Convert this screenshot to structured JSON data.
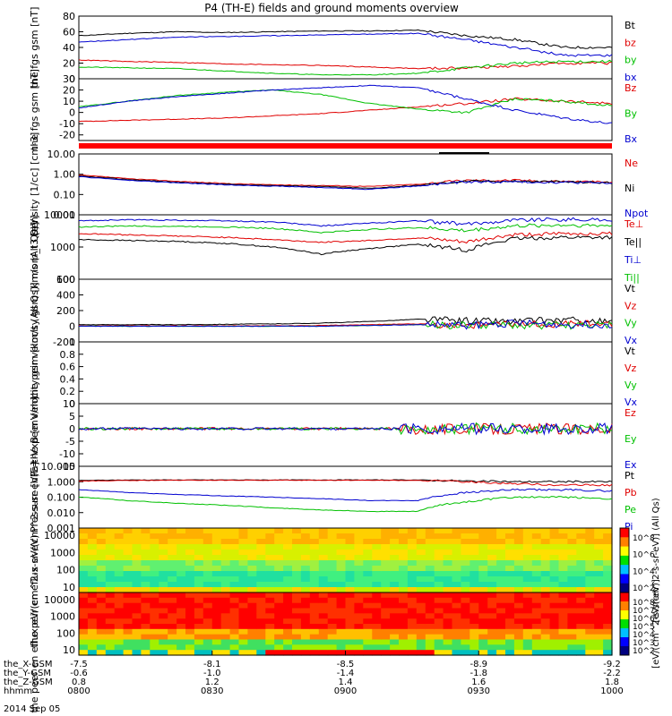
{
  "page": {
    "title": "P4 (TH-E) fields and ground moments overview"
  },
  "chart_data": [
    {
      "type": "line",
      "ylabel": "the fgs gsm [nT]",
      "ylim": [
        0,
        80
      ],
      "yticks": [
        0,
        20,
        40,
        60,
        80
      ],
      "series": [
        {
          "name": "Bt",
          "color": "#000000",
          "level": [
            55,
            58,
            60,
            59,
            60,
            61,
            61,
            62,
            55,
            50,
            40,
            40
          ]
        },
        {
          "name": "bz",
          "color": "#e00000",
          "level": [
            24,
            22,
            21,
            19,
            18,
            17,
            15,
            13,
            14,
            16,
            20,
            20
          ]
        },
        {
          "name": "by",
          "color": "#00c000",
          "level": [
            15,
            14,
            13,
            10,
            7,
            5,
            5,
            7,
            14,
            20,
            22,
            22
          ]
        },
        {
          "name": "bx",
          "color": "#0000d0",
          "level": [
            47,
            50,
            53,
            54,
            55,
            56,
            57,
            58,
            50,
            40,
            30,
            30
          ]
        }
      ]
    },
    {
      "type": "line",
      "ylabel": "the fgs gsm [nT]",
      "ylim": [
        -25,
        30
      ],
      "yticks": [
        -20,
        -10,
        0,
        10,
        20,
        30
      ],
      "series": [
        {
          "name": "Bz",
          "color": "#e00000",
          "level": [
            -8,
            -7,
            -6,
            -5,
            -3,
            -1,
            2,
            5,
            8,
            12,
            10,
            8
          ]
        },
        {
          "name": "By",
          "color": "#00c000",
          "level": [
            5,
            10,
            15,
            18,
            20,
            16,
            8,
            3,
            0,
            12,
            10,
            6
          ]
        },
        {
          "name": "Bx",
          "color": "#0000d0",
          "level": [
            4,
            10,
            14,
            17,
            20,
            22,
            24,
            22,
            12,
            2,
            -5,
            -10
          ]
        }
      ]
    },
    {
      "type": "line",
      "log": true,
      "ylabel": "Density [1/cc] [cm-3]",
      "ylim": [
        0.01,
        10
      ],
      "ytick_labels": [
        "10.00",
        "1.00",
        "0.10",
        "0.01"
      ],
      "series": [
        {
          "name": "Ne",
          "color": "#e00000",
          "level": [
            0.9,
            0.6,
            0.45,
            0.35,
            0.3,
            0.28,
            0.25,
            0.32,
            0.5,
            0.5,
            0.45,
            0.4
          ]
        },
        {
          "name": "Ni",
          "color": "#000000",
          "level": [
            0.8,
            0.55,
            0.4,
            0.32,
            0.28,
            0.25,
            0.2,
            0.28,
            0.45,
            0.45,
            0.42,
            0.38
          ]
        },
        {
          "name": "Npot",
          "color": "#0000d0",
          "level": [
            0.75,
            0.5,
            0.38,
            0.3,
            0.26,
            0.22,
            0.18,
            0.26,
            0.42,
            0.42,
            0.4,
            0.36
          ]
        }
      ]
    },
    {
      "type": "line",
      "log": true,
      "ylabel": "mom_t3 [eV]",
      "ylim": [
        100,
        10000
      ],
      "ytick_labels": [
        "10000",
        "1000",
        "100"
      ],
      "series": [
        {
          "name": "Te⊥",
          "color": "#e00000",
          "level": [
            2600,
            2400,
            2200,
            2000,
            1700,
            1400,
            1600,
            1900,
            1400,
            2400,
            2600,
            2600
          ]
        },
        {
          "name": "Te||",
          "color": "#000000",
          "level": [
            1700,
            1600,
            1500,
            1300,
            1000,
            600,
            900,
            1200,
            800,
            1800,
            2000,
            2000
          ]
        },
        {
          "name": "Ti⊥",
          "color": "#0000d0",
          "level": [
            6500,
            7000,
            6800,
            6500,
            6000,
            4500,
            5500,
            6500,
            5000,
            7000,
            7200,
            7000
          ]
        },
        {
          "name": "Ti||",
          "color": "#00c000",
          "level": [
            4200,
            4500,
            4400,
            4200,
            3800,
            2800,
            3500,
            4000,
            3200,
            4500,
            4800,
            4600
          ]
        }
      ]
    },
    {
      "type": "line",
      "ylabel": "the peir velocity gsm [km/s (All Qs)]",
      "ylim": [
        -200,
        600
      ],
      "yticks": [
        -200,
        0,
        200,
        400,
        600
      ],
      "series": [
        {
          "name": "Vt",
          "color": "#000000",
          "level": [
            20,
            20,
            20,
            25,
            30,
            40,
            60,
            90,
            70,
            60,
            80,
            50
          ]
        },
        {
          "name": "Vz",
          "color": "#e00000",
          "level": [
            5,
            5,
            5,
            5,
            5,
            10,
            20,
            30,
            10,
            20,
            30,
            20
          ]
        },
        {
          "name": "Vy",
          "color": "#00c000",
          "level": [
            0,
            0,
            0,
            0,
            0,
            0,
            10,
            20,
            10,
            10,
            10,
            10
          ]
        },
        {
          "name": "Vx",
          "color": "#0000d0",
          "level": [
            0,
            0,
            0,
            0,
            0,
            0,
            10,
            20,
            10,
            40,
            20,
            20
          ]
        }
      ]
    },
    {
      "type": "line",
      "ylabel": "the peer velocity gsm [km/s (All Qs)]",
      "ylim": [
        0,
        1
      ],
      "yticks": [
        0,
        0.2,
        0.4,
        0.6,
        0.8,
        1
      ],
      "series": [
        {
          "name": "Vt",
          "color": "#000000"
        },
        {
          "name": "Vz",
          "color": "#e00000"
        },
        {
          "name": "Vy",
          "color": "#00c000"
        },
        {
          "name": "Vx",
          "color": "#0000d0"
        }
      ]
    },
    {
      "type": "line",
      "ylabel": "E=-VxB [mV/m]",
      "ylim": [
        -15,
        10
      ],
      "yticks": [
        -15,
        -10,
        -5,
        0,
        5,
        10
      ],
      "series": [
        {
          "name": "Ez",
          "color": "#e00000",
          "level": [
            0,
            0,
            0,
            0,
            0,
            0,
            0,
            0,
            0,
            0,
            0,
            0
          ]
        },
        {
          "name": "Ey",
          "color": "#00c000",
          "level": [
            0,
            0,
            0,
            0,
            0,
            0,
            0,
            0,
            0,
            0,
            0,
            0
          ]
        },
        {
          "name": "Ex",
          "color": "#0000d0",
          "level": [
            0,
            0,
            0,
            0,
            0,
            0,
            0,
            0,
            0,
            0,
            0,
            0
          ]
        }
      ]
    },
    {
      "type": "line",
      "log": true,
      "ylabel": "Pressure [nPa]",
      "ylim": [
        0.001,
        10
      ],
      "ytick_labels": [
        "10.000",
        "1.000",
        "0.100",
        "0.010",
        "0.001"
      ],
      "series": [
        {
          "name": "Pt",
          "color": "#000000",
          "level": [
            1.2,
            1.3,
            1.3,
            1.3,
            1.3,
            1.3,
            1.3,
            1.3,
            1.1,
            1.0,
            1.0,
            1.0
          ]
        },
        {
          "name": "Pb",
          "color": "#e00000",
          "level": [
            1.1,
            1.2,
            1.25,
            1.25,
            1.25,
            1.25,
            1.25,
            1.2,
            1.0,
            0.75,
            0.6,
            0.6
          ]
        },
        {
          "name": "Pe",
          "color": "#00c000",
          "level": [
            0.1,
            0.06,
            0.04,
            0.03,
            0.02,
            0.015,
            0.012,
            0.012,
            0.05,
            0.1,
            0.1,
            0.08
          ]
        },
        {
          "name": "Pi",
          "color": "#0000d0",
          "level": [
            0.3,
            0.2,
            0.15,
            0.12,
            0.1,
            0.08,
            0.06,
            0.06,
            0.2,
            0.3,
            0.3,
            0.25
          ]
        }
      ]
    },
    {
      "type": "heatmap",
      "ylabel": "the peir en eflux eV/(cm^2-s-sr-eV)",
      "ytick_labels": [
        "10000",
        "1000",
        "100",
        "10"
      ],
      "colorbar_label": "[eV/(cm^2-s-sr-eV)] (All Qs)",
      "colorbar_ticks": [
        "10^8",
        "10^6",
        "10^4",
        "10^2"
      ]
    },
    {
      "type": "heatmap",
      "ylabel": "the peer en eflux eV/(cm^2-s-sr-eV)",
      "ytick_labels": [
        "10000",
        "1000",
        "100",
        "10"
      ],
      "colorbar_label": "[eV/(cm^2-s-sr-eV)]",
      "colorbar_ticks": [
        "10^8",
        "10^7",
        "10^6",
        "10^5",
        "10^4",
        "10^3",
        "10^2"
      ]
    }
  ],
  "x_axis": {
    "rows": [
      {
        "label": "the_X-GSM",
        "values": [
          "-7.5",
          "-8.1",
          "-8.5",
          "-8.9",
          "-9.2"
        ]
      },
      {
        "label": "the_Y-GSM",
        "values": [
          "-0.6",
          "-1.0",
          "-1.4",
          "-1.8",
          "-2.2"
        ]
      },
      {
        "label": "the_Z-GSM",
        "values": [
          "0.8",
          "1.2",
          "1.4",
          "1.6",
          "1.8"
        ]
      },
      {
        "label": "hhmm",
        "values": [
          "0800",
          "0830",
          "0900",
          "0930",
          "1000"
        ]
      }
    ],
    "date": "2014 Sep 05"
  }
}
